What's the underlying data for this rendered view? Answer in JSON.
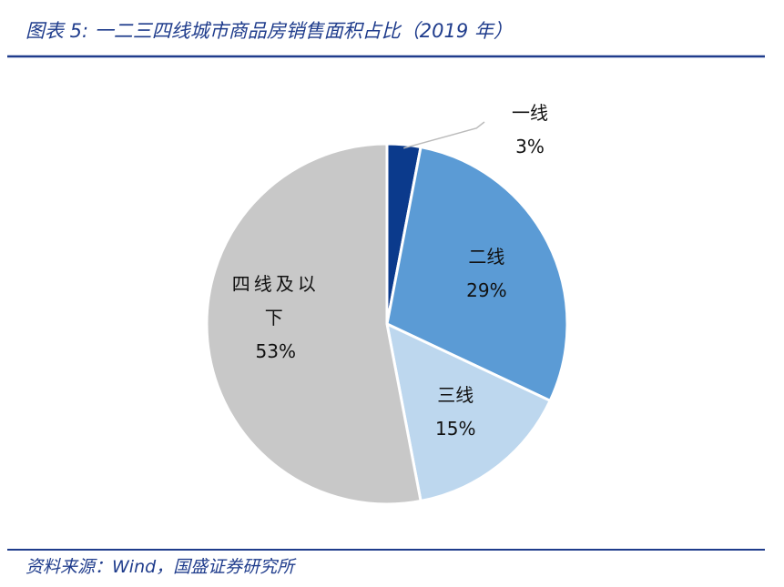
{
  "chart_data": {
    "type": "pie",
    "title": "图表 5:  一二三四线城市商品房销售面积占比（2019 年）",
    "source": "资料来源：Wind，国盛证券研究所",
    "categories": [
      "一线",
      "二线",
      "三线",
      "四线及以下"
    ],
    "values": [
      3,
      29,
      15,
      53
    ],
    "value_labels": [
      "3%",
      "29%",
      "15%",
      "53%"
    ],
    "colors": [
      "#0b3a8c",
      "#5b9bd5",
      "#bdd7ee",
      "#c8c8c8"
    ]
  }
}
